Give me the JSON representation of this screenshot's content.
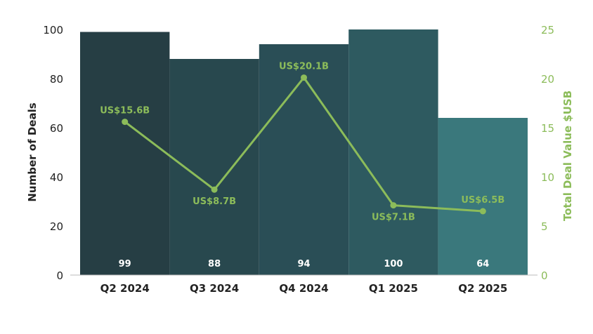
{
  "chart_data": {
    "type": "bar",
    "categories": [
      "Q2 2024",
      "Q3 2024",
      "Q4 2024",
      "Q1 2025",
      "Q2 2025"
    ],
    "series": [
      {
        "name": "Number of Deals",
        "type": "bar",
        "axis": "left",
        "values": [
          99,
          88,
          94,
          100,
          64
        ],
        "data_labels": [
          "99",
          "88",
          "94",
          "100",
          "64"
        ],
        "colors": [
          "#263e44",
          "#28484e",
          "#2a4e56",
          "#2e5a60",
          "#3a787c"
        ]
      },
      {
        "name": "Total Deal Value $USB",
        "type": "line",
        "axis": "right",
        "values": [
          15.6,
          8.7,
          20.1,
          7.1,
          6.5
        ],
        "data_labels": [
          "US$15.6B",
          "US$8.7B",
          "US$20.1B",
          "US$7.1B",
          "US$6.5B"
        ],
        "color": "#8cbc5a"
      }
    ],
    "title": "",
    "xlabel": "",
    "ylabel": "Number of Deals",
    "y2label": "Total Deal Value $USB",
    "ylim": [
      0,
      100
    ],
    "y2lim": [
      0,
      25
    ],
    "yticks": [
      "0",
      "20",
      "40",
      "60",
      "80",
      "100"
    ],
    "y2ticks": [
      "0",
      "5",
      "10",
      "15",
      "20",
      "25"
    ],
    "grid": false,
    "colors": {
      "left_axis_text": "#222222",
      "right_axis_text": "#8cbc5a",
      "bar_label_text": "#ffffff",
      "axis_line": "#bbbbbb"
    }
  }
}
